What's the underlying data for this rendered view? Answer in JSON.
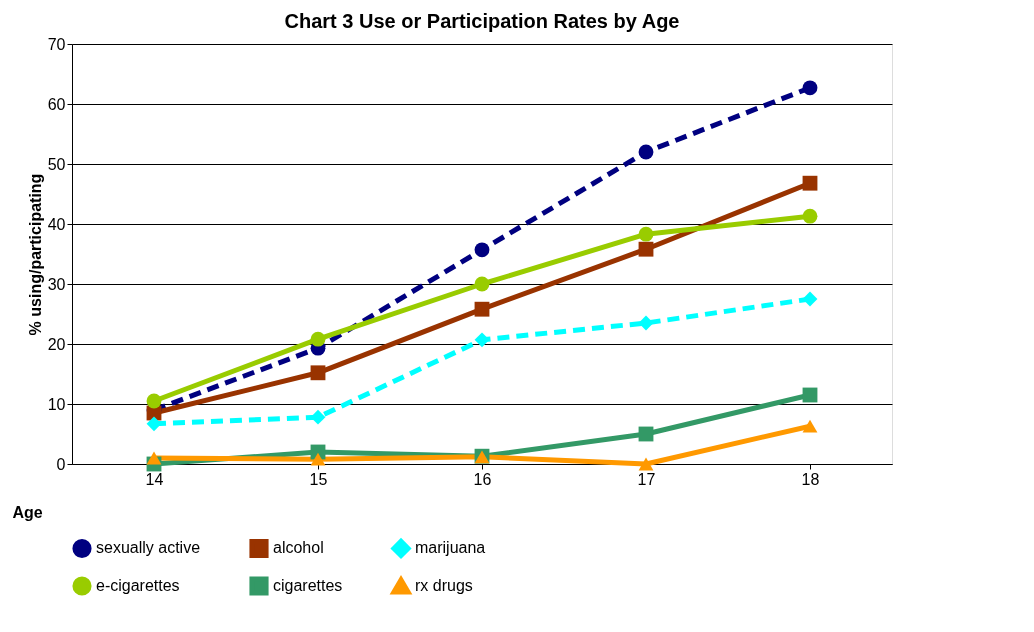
{
  "chart_data": {
    "type": "line",
    "title": "Chart 3  Use or Participation Rates by Age",
    "xlabel": "Age",
    "ylabel": "% using/participating",
    "categories": [
      "14",
      "15",
      "16",
      "17",
      "18"
    ],
    "series": [
      {
        "name": "sexually active",
        "color": "#000080",
        "marker": "circle",
        "line_style": "dashed",
        "values": [
          9,
          19.3,
          35.7,
          52,
          62.7
        ]
      },
      {
        "name": "alcohol",
        "color": "#993300",
        "marker": "square",
        "line_style": "solid",
        "values": [
          8.5,
          15.2,
          25.8,
          35.8,
          46.8
        ]
      },
      {
        "name": "marijuana",
        "color": "#00ffff",
        "marker": "diamond",
        "line_style": "dashed",
        "values": [
          6.7,
          7.8,
          20.7,
          23.5,
          27.5
        ]
      },
      {
        "name": "e-cigarettes",
        "color": "#99cc00",
        "marker": "circle",
        "line_style": "solid",
        "values": [
          10.5,
          20.8,
          30,
          38.3,
          41.3
        ]
      },
      {
        "name": "cigarettes",
        "color": "#339966",
        "marker": "square",
        "line_style": "solid",
        "values": [
          0,
          2,
          1.3,
          5,
          11.5
        ]
      },
      {
        "name": "rx drugs",
        "color": "#ff9900",
        "marker": "triangle",
        "line_style": "solid",
        "values": [
          1,
          0.8,
          1.2,
          0,
          6.3
        ]
      }
    ],
    "ylim": [
      0,
      70
    ],
    "yticks": [
      0,
      10,
      20,
      30,
      40,
      50,
      60,
      70
    ],
    "grid": "y",
    "legend": "bottom"
  }
}
